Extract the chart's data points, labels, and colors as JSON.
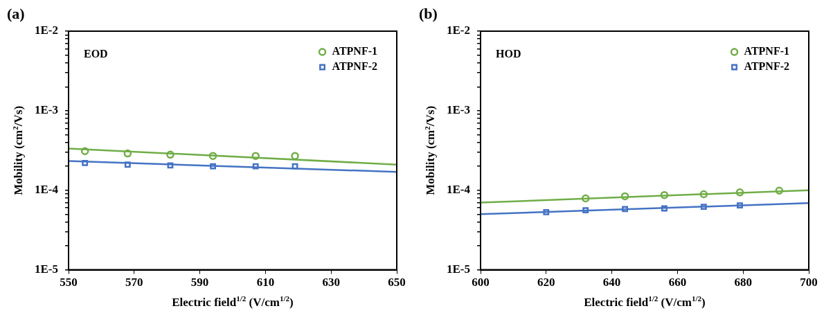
{
  "chart_data": [
    {
      "type": "scatter",
      "title": "(a)",
      "xlabel": "Electric field$^{1/2}$ (V/cm$^{1/2}$)",
      "ylabel": "Mobility (cm$^{2}$/Vs)",
      "annotations": [
        "EOD"
      ],
      "log": "y",
      "grid": false,
      "legend": "top right",
      "xlim": [
        550,
        650
      ],
      "xticks": [
        550,
        570,
        590,
        610,
        630,
        650
      ],
      "ylim": [
        1e-05,
        0.01
      ],
      "yticks": [
        {
          "value": 1e-05,
          "label": "1E-5"
        },
        {
          "value": 2e-05,
          "label": null
        },
        {
          "value": 3e-05,
          "label": null
        },
        {
          "value": 4e-05,
          "label": null
        },
        {
          "value": 5e-05,
          "label": null
        },
        {
          "value": 6e-05,
          "label": null
        },
        {
          "value": 7e-05,
          "label": null
        },
        {
          "value": 8e-05,
          "label": null
        },
        {
          "value": 9e-05,
          "label": null
        },
        {
          "value": 0.0001,
          "label": "1E-4"
        },
        {
          "value": 0.0002,
          "label": null
        },
        {
          "value": 0.0003,
          "label": null
        },
        {
          "value": 0.0004,
          "label": null
        },
        {
          "value": 0.0005,
          "label": null
        },
        {
          "value": 0.0006,
          "label": null
        },
        {
          "value": 0.0007,
          "label": null
        },
        {
          "value": 0.0008,
          "label": null
        },
        {
          "value": 0.0009,
          "label": null
        },
        {
          "value": 0.001,
          "label": "1E-3"
        },
        {
          "value": 0.002,
          "label": null
        },
        {
          "value": 0.003,
          "label": null
        },
        {
          "value": 0.004,
          "label": null
        },
        {
          "value": 0.005,
          "label": null
        },
        {
          "value": 0.006,
          "label": null
        },
        {
          "value": 0.007,
          "label": null
        },
        {
          "value": 0.008,
          "label": null
        },
        {
          "value": 0.009,
          "label": null
        },
        {
          "value": 0.01,
          "label": "1E-2"
        }
      ],
      "series": [
        {
          "name": "ATPNF-1",
          "marker": "circle",
          "color": "#70ad47",
          "x": [
            555,
            568,
            581,
            594,
            607,
            619
          ],
          "values": [
            0.00031,
            0.00029,
            0.00028,
            0.00027,
            0.00027,
            0.00027
          ]
        },
        {
          "name": "ATPNF-2",
          "marker": "square",
          "color": "#4472c4",
          "x": [
            555,
            568,
            581,
            594,
            607,
            619
          ],
          "values": [
            0.00022,
            0.00021,
            0.000205,
            0.0002,
            0.0002,
            0.0002
          ]
        },
        {
          "type": "line",
          "marker": "none",
          "color": "#70ad47",
          "x": [
            550,
            650
          ],
          "values": [
            0.000335,
            0.00021
          ]
        },
        {
          "type": "line",
          "marker": "none",
          "color": "#4472c4",
          "x": [
            550,
            650
          ],
          "values": [
            0.000233,
            0.00017
          ]
        }
      ]
    },
    {
      "type": "scatter",
      "title": "(b)",
      "xlabel": "Electric field$^{1/2}$ (V/cm$^{1/2}$)",
      "ylabel": "Mobility (cm$^{2}$/Vs)",
      "annotations": [
        "HOD"
      ],
      "log": "y",
      "grid": false,
      "legend": "top right",
      "xlim": [
        600,
        700
      ],
      "xticks": [
        600,
        620,
        640,
        660,
        680,
        700
      ],
      "ylim": [
        1e-05,
        0.01
      ],
      "yticks": [
        {
          "value": 1e-05,
          "label": "1E-5"
        },
        {
          "value": 2e-05,
          "label": null
        },
        {
          "value": 3e-05,
          "label": null
        },
        {
          "value": 4e-05,
          "label": null
        },
        {
          "value": 5e-05,
          "label": null
        },
        {
          "value": 6e-05,
          "label": null
        },
        {
          "value": 7e-05,
          "label": null
        },
        {
          "value": 8e-05,
          "label": null
        },
        {
          "value": 9e-05,
          "label": null
        },
        {
          "value": 0.0001,
          "label": "1E-4"
        },
        {
          "value": 0.0002,
          "label": null
        },
        {
          "value": 0.0003,
          "label": null
        },
        {
          "value": 0.0004,
          "label": null
        },
        {
          "value": 0.0005,
          "label": null
        },
        {
          "value": 0.0006,
          "label": null
        },
        {
          "value": 0.0007,
          "label": null
        },
        {
          "value": 0.0008,
          "label": null
        },
        {
          "value": 0.0009,
          "label": null
        },
        {
          "value": 0.001,
          "label": "1E-3"
        },
        {
          "value": 0.002,
          "label": null
        },
        {
          "value": 0.003,
          "label": null
        },
        {
          "value": 0.004,
          "label": null
        },
        {
          "value": 0.005,
          "label": null
        },
        {
          "value": 0.006,
          "label": null
        },
        {
          "value": 0.007,
          "label": null
        },
        {
          "value": 0.008,
          "label": null
        },
        {
          "value": 0.009,
          "label": null
        },
        {
          "value": 0.01,
          "label": "1E-2"
        }
      ],
      "series": [
        {
          "name": "ATPNF-1",
          "marker": "circle",
          "color": "#70ad47",
          "x": [
            632,
            644,
            656,
            668,
            679,
            691
          ],
          "values": [
            7.9e-05,
            8.4e-05,
            8.7e-05,
            8.9e-05,
            9.4e-05,
            9.9e-05
          ]
        },
        {
          "name": "ATPNF-2",
          "marker": "square",
          "color": "#4472c4",
          "x": [
            620,
            632,
            644,
            656,
            668,
            679
          ],
          "values": [
            5.3e-05,
            5.6e-05,
            5.8e-05,
            5.9e-05,
            6.2e-05,
            6.45e-05
          ]
        },
        {
          "type": "line",
          "marker": "none",
          "color": "#70ad47",
          "x": [
            600,
            700
          ],
          "values": [
            7e-05,
            0.0001
          ]
        },
        {
          "type": "line",
          "marker": "none",
          "color": "#4472c4",
          "x": [
            600,
            700
          ],
          "values": [
            5e-05,
            6.9e-05
          ]
        }
      ]
    }
  ]
}
